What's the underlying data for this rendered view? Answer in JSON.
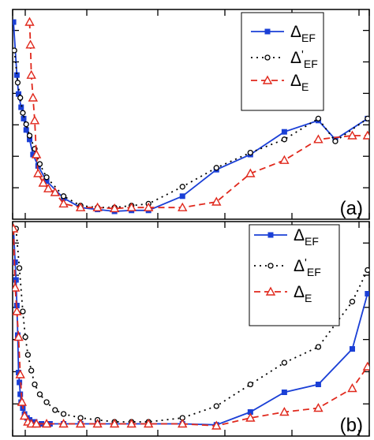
{
  "chart_data": [
    {
      "panel_label": "(a)",
      "type": "line",
      "legend_position": "top-right",
      "xlim": [
        0,
        21
      ],
      "ylim": [
        0,
        100
      ],
      "series": [
        {
          "name": "Δ_EF",
          "legend_main": "Δ",
          "legend_prime": "",
          "legend_sub": "EF",
          "color": "#1a3fd6",
          "dash": "solid",
          "marker": "square-filled",
          "x": [
            0.05,
            0.25,
            0.35,
            0.5,
            0.65,
            0.8,
            1.0,
            1.2,
            1.5,
            2.0,
            3.0,
            4.0,
            5.0,
            6.0,
            7.0,
            8.0,
            10.0,
            12.0,
            14.0,
            16.0,
            18.0,
            19.0,
            20.9
          ],
          "y": [
            100,
            72,
            62,
            55,
            49,
            43,
            38,
            30,
            24,
            16,
            7,
            2,
            1,
            0,
            0.5,
            0.5,
            8,
            22,
            30,
            42,
            48,
            38,
            49
          ]
        },
        {
          "name": "Δ'_EF",
          "legend_main": "Δ",
          "legend_prime": "'",
          "legend_sub": "EF",
          "color": "#000000",
          "dash": "dotted",
          "marker": "circle-open",
          "x": [
            0.1,
            0.3,
            0.45,
            0.6,
            0.8,
            1.0,
            1.3,
            1.6,
            2.0,
            3.0,
            4.0,
            5.0,
            6.0,
            7.0,
            8.0,
            10.0,
            12.0,
            14.0,
            16.0,
            18.0,
            19.0,
            20.9
          ],
          "y": [
            85,
            68,
            60,
            52,
            46,
            40,
            33,
            25,
            18,
            8,
            3,
            2,
            2,
            3,
            4,
            13,
            23,
            31,
            38,
            49,
            37,
            49
          ]
        },
        {
          "name": "Δ_E",
          "legend_main": "Δ",
          "legend_prime": "",
          "legend_sub": "E",
          "color": "#e0281c",
          "dash": "dashed",
          "marker": "triangle-open",
          "x": [
            1.0,
            1.05,
            1.1,
            1.2,
            1.3,
            1.4,
            1.5,
            1.8,
            2.1,
            2.5,
            3.0,
            4.0,
            5.0,
            6.0,
            7.0,
            8.0,
            10.0,
            12.0,
            14.0,
            16.0,
            18.0,
            20.0,
            20.9
          ],
          "y": [
            100,
            88,
            72,
            60,
            48,
            30,
            20,
            15,
            12,
            10,
            4,
            2,
            2,
            1.5,
            2,
            2,
            2,
            5,
            20,
            27,
            38,
            40,
            40
          ]
        }
      ]
    },
    {
      "panel_label": "(b)",
      "type": "line",
      "legend_position": "top-right",
      "xlim": [
        0,
        21
      ],
      "ylim": [
        0,
        100
      ],
      "series": [
        {
          "name": "Δ_EF",
          "legend_main": "Δ",
          "legend_prime": "",
          "legend_sub": "EF",
          "color": "#1a3fd6",
          "dash": "solid",
          "marker": "square-filled",
          "x": [
            0.05,
            0.15,
            0.2,
            0.25,
            0.3,
            0.35,
            0.4,
            0.45,
            0.5,
            0.6,
            0.7,
            0.85,
            1.0,
            1.3,
            1.7,
            2.2,
            3.0,
            4.0,
            5.0,
            6.0,
            7.0,
            8.0,
            10.0,
            12.0,
            14.0,
            16.0,
            18.0,
            20.0,
            20.9
          ],
          "y": [
            100,
            83,
            74,
            61,
            46,
            27,
            22,
            16,
            12,
            9,
            6,
            4,
            3,
            2,
            1,
            1,
            1,
            1,
            1,
            1,
            1,
            1,
            1,
            0.5,
            7,
            17,
            21,
            39,
            67
          ]
        },
        {
          "name": "Δ'_EF",
          "legend_main": "Δ",
          "legend_prime": "'",
          "legend_sub": "EF",
          "color": "#000000",
          "dash": "dotted",
          "marker": "circle-open",
          "x": [
            0.2,
            0.4,
            0.6,
            0.75,
            0.9,
            1.1,
            1.3,
            1.6,
            2.0,
            2.5,
            3.0,
            4.0,
            5.0,
            6.0,
            7.0,
            8.0,
            10.0,
            12.0,
            14.0,
            16.0,
            18.0,
            20.0,
            20.9
          ],
          "y": [
            100,
            80,
            58,
            45,
            36,
            28,
            21,
            16,
            12,
            8,
            6,
            4,
            3,
            2,
            2,
            2,
            4,
            10,
            21,
            32,
            40,
            63,
            79
          ]
        },
        {
          "name": "Δ_E",
          "legend_main": "Δ",
          "legend_prime": "",
          "legend_sub": "E",
          "color": "#e0281c",
          "dash": "dashed",
          "marker": "triangle-open",
          "x": [
            0.05,
            0.15,
            0.25,
            0.35,
            0.45,
            0.55,
            0.7,
            0.9,
            1.1,
            1.4,
            2.0,
            3.0,
            4.0,
            5.0,
            6.0,
            7.0,
            8.0,
            10.0,
            12.0,
            14.0,
            16.0,
            18.0,
            20.0,
            20.9
          ],
          "y": [
            100,
            70,
            58,
            45,
            26,
            12,
            5,
            2,
            1,
            1,
            1,
            1,
            1,
            1,
            1,
            1,
            1,
            1,
            0,
            4,
            7,
            9,
            19,
            30
          ]
        }
      ]
    }
  ]
}
